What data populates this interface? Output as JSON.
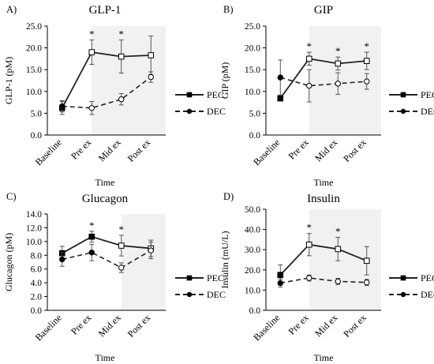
{
  "chart_data": [
    {
      "type": "line",
      "panel_letter": "A)",
      "title": "GLP-1",
      "ylabel": "GLP-1 (pM)",
      "xlabel": "Time",
      "ylim": [
        0,
        25
      ],
      "y_ticks": [
        "0.0",
        "5.0",
        "10.0",
        "15.0",
        "20.0",
        "25.0"
      ],
      "categories": [
        "Baseline",
        "Pre ex",
        "Mid ex",
        "Post ex"
      ],
      "shaded_categories": [
        "Pre ex",
        "Mid ex",
        "Post ex"
      ],
      "series": [
        {
          "name": "PEC",
          "values": [
            6.2,
            19.0,
            18.0,
            18.3
          ],
          "errors": [
            1.5,
            2.8,
            3.8,
            4.4
          ],
          "line": "solid"
        },
        {
          "name": "DEC",
          "values": [
            6.6,
            6.2,
            8.2,
            13.3
          ],
          "errors": [
            1.3,
            1.5,
            1.3,
            1.2
          ],
          "line": "dashed"
        }
      ],
      "significance_markers": [
        "",
        "*",
        "*",
        ""
      ]
    },
    {
      "type": "line",
      "panel_letter": "B)",
      "title": "GIP",
      "ylabel": "GIP (pM)",
      "xlabel": "Time",
      "ylim": [
        0,
        25
      ],
      "y_ticks": [
        "0.0",
        "5.0",
        "10.0",
        "15.0",
        "20.0",
        "25.0"
      ],
      "categories": [
        "Baseline",
        "Pre ex",
        "Mid ex",
        "Post ex"
      ],
      "shaded_categories": [
        "Pre ex",
        "Mid ex",
        "Post ex"
      ],
      "series": [
        {
          "name": "PEC",
          "values": [
            8.4,
            17.5,
            16.4,
            17.0
          ],
          "errors": [
            0.0,
            1.5,
            1.5,
            2.0
          ],
          "line": "solid"
        },
        {
          "name": "DEC",
          "values": [
            13.2,
            11.3,
            11.8,
            12.3
          ],
          "errors": [
            4.0,
            3.7,
            2.5,
            1.8
          ],
          "line": "dashed"
        }
      ],
      "significance_markers": [
        "",
        "*",
        "*",
        "*"
      ]
    },
    {
      "type": "line",
      "panel_letter": "C)",
      "title": "Glucagon",
      "ylabel": "Glucagon (pM)",
      "xlabel": "Time",
      "ylim": [
        0,
        14
      ],
      "y_ticks": [
        "0.0",
        "2.0",
        "4.0",
        "6.0",
        "8.0",
        "10.0",
        "12.0",
        "14.0"
      ],
      "categories": [
        "Baseline",
        "Pre ex",
        "Mid ex",
        "Post ex"
      ],
      "shaded_categories": [
        "Mid ex",
        "Post ex"
      ],
      "series": [
        {
          "name": "PEC",
          "values": [
            8.3,
            10.7,
            9.4,
            9.0
          ],
          "errors": [
            1.0,
            0.8,
            1.5,
            1.2
          ],
          "line": "solid"
        },
        {
          "name": "DEC",
          "values": [
            7.4,
            8.4,
            6.2,
            8.7
          ],
          "errors": [
            1.0,
            1.2,
            0.7,
            1.2
          ],
          "line": "dashed"
        }
      ],
      "significance_markers": [
        "",
        "*",
        "*",
        ""
      ]
    },
    {
      "type": "line",
      "panel_letter": "D)",
      "title": "Insulin",
      "ylabel": "Insulin (mU/L)",
      "xlabel": "Time",
      "ylim": [
        0,
        50
      ],
      "y_ticks": [
        "0.0",
        "10.0",
        "20.0",
        "30.0",
        "40.0",
        "50.0"
      ],
      "categories": [
        "Baseline",
        "Pre ex",
        "Mid ex",
        "Post ex"
      ],
      "shaded_categories": [
        "Pre ex",
        "Mid ex",
        "Post ex"
      ],
      "series": [
        {
          "name": "PEC",
          "values": [
            17.5,
            32.5,
            30.3,
            24.5
          ],
          "errors": [
            5.0,
            5.5,
            5.8,
            7.0
          ],
          "line": "solid"
        },
        {
          "name": "DEC",
          "values": [
            13.5,
            16.0,
            14.3,
            13.8
          ],
          "errors": [
            2.0,
            1.5,
            1.5,
            1.5
          ],
          "line": "dashed"
        }
      ],
      "significance_markers": [
        "",
        "*",
        "*",
        ""
      ]
    }
  ]
}
